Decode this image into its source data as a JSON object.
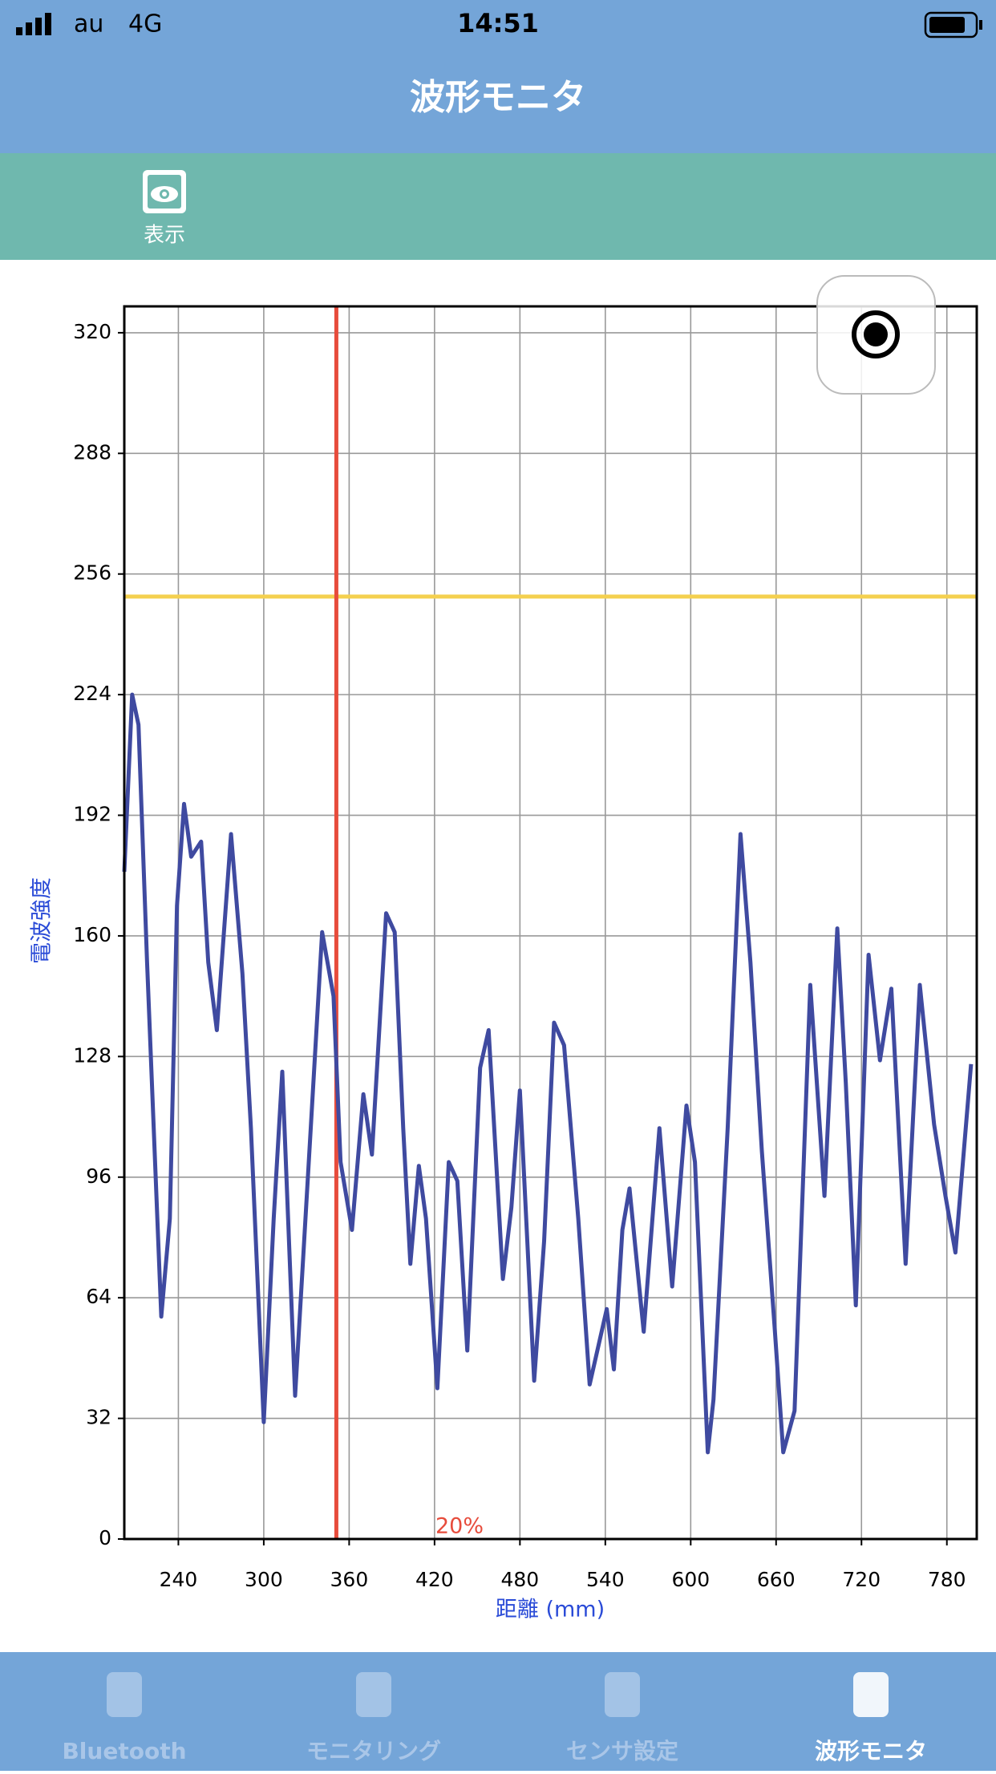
{
  "status_bar": {
    "carrier": "au",
    "network": "4G",
    "time": "14:51"
  },
  "header": {
    "title": "波形モニタ"
  },
  "toolbar": {
    "items": [
      {
        "label": "表示"
      }
    ]
  },
  "chart_data": {
    "type": "line",
    "x_label": "距離 (mm)",
    "y_label": "電波強度",
    "annotation": "20%",
    "x": [
      202,
      207.5,
      212,
      218,
      228,
      234,
      239,
      244,
      249,
      256,
      261,
      267,
      277,
      285,
      291,
      300,
      307,
      313,
      322,
      333,
      341,
      349,
      354,
      362,
      370,
      376,
      386,
      392,
      398,
      403,
      409,
      414,
      422,
      430,
      436,
      443,
      452,
      458,
      468,
      474,
      480,
      490,
      497,
      504,
      511,
      521,
      529,
      541,
      546,
      552,
      557,
      567,
      578,
      587,
      597,
      603,
      612,
      616,
      626,
      635,
      642,
      650,
      659,
      665,
      673,
      684,
      694,
      703,
      709,
      716,
      725,
      733,
      741,
      751,
      761,
      771,
      779,
      786,
      797
    ],
    "series": [
      {
        "color": "#3f4aa0",
        "values": [
          177,
          224,
          216,
          153,
          59,
          85,
          168,
          195,
          181,
          185,
          153,
          135,
          187,
          150,
          109,
          31,
          85,
          124,
          38,
          109,
          161,
          144,
          100,
          82,
          118,
          102,
          166,
          161,
          109,
          73,
          99,
          85,
          40,
          100,
          95,
          50,
          125,
          135,
          69,
          88,
          119,
          42,
          79,
          137,
          131,
          85,
          41,
          61,
          45,
          82,
          93,
          55,
          109,
          67,
          115,
          100,
          23,
          37,
          109,
          187,
          153,
          103,
          56,
          23,
          34,
          147,
          91,
          162,
          121,
          62,
          155,
          127,
          146,
          73,
          147,
          110,
          91,
          76,
          126
        ]
      }
    ],
    "xlim": [
      202,
      801
    ],
    "ylim": [
      0,
      327
    ],
    "xticks": [
      240,
      300,
      360,
      420,
      480,
      540,
      600,
      660,
      720,
      780
    ],
    "yticks": [
      0,
      32,
      64,
      96,
      128,
      160,
      192,
      224,
      256,
      288,
      320
    ],
    "grid": true,
    "vlines": [
      {
        "value": 351,
        "color": "#e74c3c"
      }
    ],
    "hlines": [
      {
        "value": 250,
        "color": "#f4d04f"
      }
    ]
  },
  "tab_bar": {
    "items": [
      {
        "label": "Bluetooth",
        "selected": false
      },
      {
        "label": "モニタリング",
        "selected": false
      },
      {
        "label": "センサ設定",
        "selected": false
      },
      {
        "label": "波形モニタ",
        "selected": true
      }
    ]
  }
}
